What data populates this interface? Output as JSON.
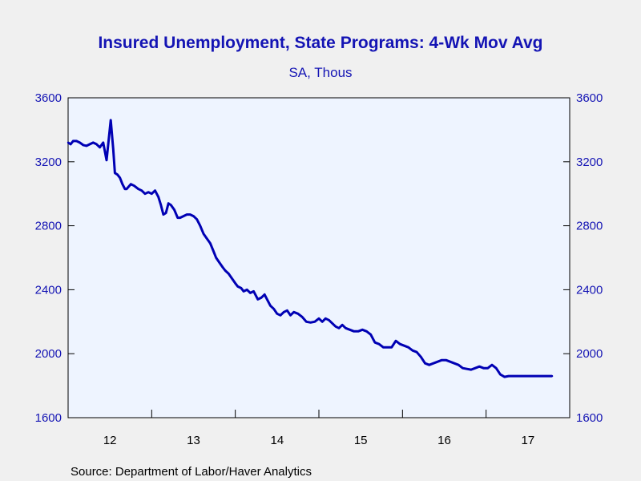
{
  "chart_data": {
    "type": "line",
    "title": "Insured Unemployment, State Programs: 4-Wk Mov Avg",
    "subtitle": "SA, Thous",
    "source": "Source:  Department of Labor/Haver Analytics",
    "x_tick_labels": [
      "12",
      "13",
      "14",
      "15",
      "16",
      "17"
    ],
    "x_range": [
      2012.0,
      2018.0
    ],
    "ylim": [
      1600,
      3600
    ],
    "y_ticks": [
      1600,
      2000,
      2400,
      2800,
      3200,
      3600
    ],
    "y_tick_labels": [
      "1600",
      "2000",
      "2400",
      "2800",
      "3200",
      "3600"
    ],
    "grid": false,
    "dual_y_axis": true,
    "series": [
      {
        "color": "#0000b4",
        "x": [
          2012.0,
          2012.03,
          2012.06,
          2012.1,
          2012.14,
          2012.18,
          2012.22,
          2012.26,
          2012.3,
          2012.34,
          2012.38,
          2012.42,
          2012.46,
          2012.51,
          2012.54,
          2012.56,
          2012.59,
          2012.62,
          2012.65,
          2012.68,
          2012.7,
          2012.75,
          2012.79,
          2012.84,
          2012.88,
          2012.92,
          2012.96,
          2013.0,
          2013.04,
          2013.08,
          2013.11,
          2013.14,
          2013.17,
          2013.2,
          2013.23,
          2013.27,
          2013.31,
          2013.34,
          2013.38,
          2013.42,
          2013.46,
          2013.5,
          2013.54,
          2013.58,
          2013.62,
          2013.66,
          2013.7,
          2013.74,
          2013.77,
          2013.81,
          2013.85,
          2013.88,
          2013.92,
          2013.96,
          2014.0,
          2014.03,
          2014.07,
          2014.1,
          2014.14,
          2014.18,
          2014.22,
          2014.27,
          2014.31,
          2014.35,
          2014.38,
          2014.42,
          2014.46,
          2014.5,
          2014.54,
          2014.58,
          2014.62,
          2014.66,
          2014.7,
          2014.75,
          2014.8,
          2014.85,
          2014.9,
          2014.95,
          2015.0,
          2015.04,
          2015.08,
          2015.12,
          2015.16,
          2015.2,
          2015.24,
          2015.28,
          2015.32,
          2015.37,
          2015.42,
          2015.47,
          2015.52,
          2015.57,
          2015.62,
          2015.67,
          2015.72,
          2015.77,
          2015.82,
          2015.87,
          2015.92,
          2015.97,
          2016.02,
          2016.07,
          2016.12,
          2016.17,
          2016.22,
          2016.27,
          2016.32,
          2016.37,
          2016.42,
          2016.47,
          2016.52,
          2016.57,
          2016.62,
          2016.67,
          2016.72,
          2016.77,
          2016.82,
          2016.87,
          2016.92,
          2016.97,
          2017.02,
          2017.07,
          2017.12,
          2017.17,
          2017.22,
          2017.27,
          2017.32,
          2017.37,
          2017.42,
          2017.47,
          2017.52,
          2017.57,
          2017.62,
          2017.67,
          2017.72,
          2017.77,
          2017.79
        ],
        "values": [
          3320,
          3310,
          3330,
          3330,
          3320,
          3305,
          3300,
          3310,
          3320,
          3310,
          3290,
          3320,
          3210,
          3460,
          3280,
          3130,
          3120,
          3100,
          3060,
          3030,
          3030,
          3060,
          3050,
          3030,
          3020,
          3000,
          3010,
          3000,
          3020,
          2980,
          2930,
          2870,
          2880,
          2940,
          2930,
          2900,
          2850,
          2850,
          2860,
          2870,
          2870,
          2860,
          2840,
          2800,
          2750,
          2720,
          2690,
          2640,
          2600,
          2570,
          2540,
          2520,
          2500,
          2470,
          2440,
          2420,
          2410,
          2390,
          2400,
          2380,
          2390,
          2340,
          2350,
          2370,
          2340,
          2300,
          2280,
          2250,
          2240,
          2260,
          2270,
          2240,
          2260,
          2250,
          2230,
          2200,
          2195,
          2200,
          2220,
          2200,
          2220,
          2210,
          2190,
          2170,
          2160,
          2180,
          2160,
          2150,
          2140,
          2140,
          2150,
          2140,
          2120,
          2070,
          2060,
          2040,
          2040,
          2040,
          2080,
          2060,
          2050,
          2040,
          2020,
          2010,
          1980,
          1940,
          1930,
          1940,
          1950,
          1960,
          1960,
          1950,
          1940,
          1930,
          1910,
          1905,
          1900,
          1910,
          1920,
          1910,
          1910,
          1930,
          1910,
          1870,
          1855,
          1860,
          1860,
          1860,
          1860,
          1860,
          1860,
          1860,
          1860,
          1860,
          1860,
          1860,
          1860
        ]
      }
    ]
  }
}
